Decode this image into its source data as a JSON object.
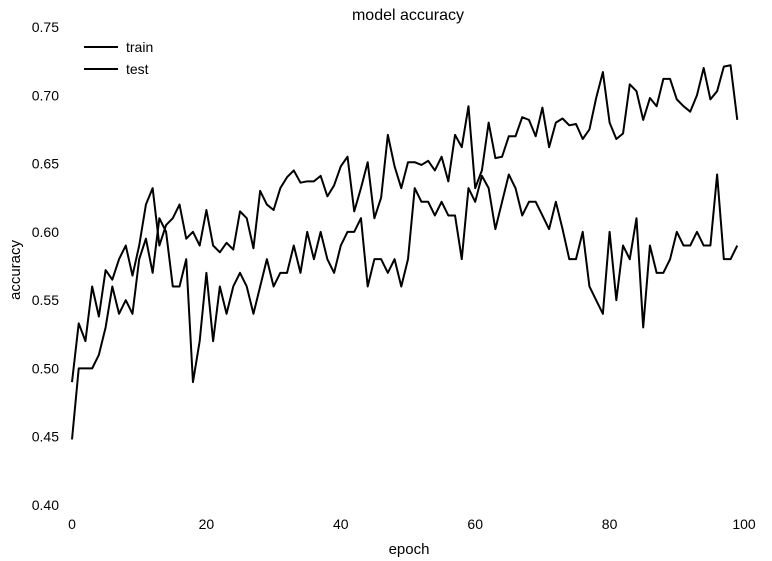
{
  "chart_data": {
    "type": "line",
    "title": "model accuracy",
    "xlabel": "epoch",
    "ylabel": "accuracy",
    "xlim": [
      0,
      100
    ],
    "ylim": [
      0.4,
      0.75
    ],
    "xticks": [
      "0",
      "20",
      "40",
      "60",
      "80",
      "100"
    ],
    "yticks": [
      "0.40",
      "0.45",
      "0.50",
      "0.55",
      "0.60",
      "0.65",
      "0.70",
      "0.75"
    ],
    "grid": false,
    "legend": "top-left",
    "line_color": "#000000",
    "series": [
      {
        "name": "train",
        "x": [
          0,
          1,
          2,
          3,
          4,
          5,
          6,
          7,
          8,
          9,
          10,
          11,
          12,
          13,
          14,
          15,
          16,
          17,
          18,
          19,
          20,
          21,
          22,
          23,
          24,
          25,
          26,
          27,
          28,
          29,
          30,
          31,
          32,
          33,
          34,
          35,
          36,
          37,
          38,
          39,
          40,
          41,
          42,
          43,
          44,
          45,
          46,
          47,
          48,
          49,
          50,
          51,
          52,
          53,
          54,
          55,
          56,
          57,
          58,
          59,
          60,
          61,
          62,
          63,
          64,
          65,
          66,
          67,
          68,
          69,
          70,
          71,
          72,
          73,
          74,
          75,
          76,
          77,
          78,
          79,
          80,
          81,
          82,
          83,
          84,
          85,
          86,
          87,
          88,
          89,
          90,
          91,
          92,
          93,
          94,
          95,
          96,
          97,
          98,
          99
        ],
        "values": [
          0.49,
          0.533,
          0.52,
          0.56,
          0.538,
          0.572,
          0.565,
          0.58,
          0.59,
          0.568,
          0.59,
          0.62,
          0.632,
          0.59,
          0.605,
          0.61,
          0.62,
          0.595,
          0.6,
          0.59,
          0.616,
          0.59,
          0.585,
          0.592,
          0.587,
          0.615,
          0.61,
          0.588,
          0.63,
          0.62,
          0.616,
          0.632,
          0.64,
          0.645,
          0.636,
          0.637,
          0.637,
          0.641,
          0.626,
          0.634,
          0.648,
          0.655,
          0.615,
          0.632,
          0.651,
          0.61,
          0.625,
          0.671,
          0.648,
          0.632,
          0.651,
          0.651,
          0.649,
          0.652,
          0.645,
          0.655,
          0.637,
          0.671,
          0.662,
          0.692,
          0.632,
          0.645,
          0.68,
          0.654,
          0.655,
          0.67,
          0.67,
          0.684,
          0.682,
          0.67,
          0.691,
          0.662,
          0.68,
          0.683,
          0.678,
          0.679,
          0.668,
          0.675,
          0.698,
          0.717,
          0.68,
          0.668,
          0.672,
          0.708,
          0.703,
          0.682,
          0.698,
          0.692,
          0.712,
          0.712,
          0.697,
          0.692,
          0.688,
          0.7,
          0.72,
          0.697,
          0.703,
          0.721,
          0.722,
          0.682
        ]
      },
      {
        "name": "test",
        "x": [
          0,
          1,
          2,
          3,
          4,
          5,
          6,
          7,
          8,
          9,
          10,
          11,
          12,
          13,
          14,
          15,
          16,
          17,
          18,
          19,
          20,
          21,
          22,
          23,
          24,
          25,
          26,
          27,
          28,
          29,
          30,
          31,
          32,
          33,
          34,
          35,
          36,
          37,
          38,
          39,
          40,
          41,
          42,
          43,
          44,
          45,
          46,
          47,
          48,
          49,
          50,
          51,
          52,
          53,
          54,
          55,
          56,
          57,
          58,
          59,
          60,
          61,
          62,
          63,
          64,
          65,
          66,
          67,
          68,
          69,
          70,
          71,
          72,
          73,
          74,
          75,
          76,
          77,
          78,
          79,
          80,
          81,
          82,
          83,
          84,
          85,
          86,
          87,
          88,
          89,
          90,
          91,
          92,
          93,
          94,
          95,
          96,
          97,
          98,
          99
        ],
        "values": [
          0.448,
          0.5,
          0.5,
          0.5,
          0.51,
          0.53,
          0.56,
          0.54,
          0.55,
          0.54,
          0.58,
          0.595,
          0.57,
          0.61,
          0.6,
          0.56,
          0.56,
          0.58,
          0.49,
          0.52,
          0.57,
          0.52,
          0.56,
          0.54,
          0.56,
          0.57,
          0.56,
          0.54,
          0.56,
          0.58,
          0.56,
          0.57,
          0.57,
          0.59,
          0.57,
          0.6,
          0.58,
          0.6,
          0.58,
          0.57,
          0.59,
          0.6,
          0.6,
          0.61,
          0.56,
          0.58,
          0.58,
          0.57,
          0.58,
          0.56,
          0.58,
          0.632,
          0.622,
          0.622,
          0.612,
          0.622,
          0.612,
          0.612,
          0.58,
          0.632,
          0.622,
          0.641,
          0.632,
          0.602,
          0.622,
          0.642,
          0.632,
          0.612,
          0.622,
          0.622,
          0.612,
          0.602,
          0.622,
          0.602,
          0.58,
          0.58,
          0.6,
          0.56,
          0.55,
          0.54,
          0.6,
          0.55,
          0.59,
          0.58,
          0.61,
          0.53,
          0.59,
          0.57,
          0.57,
          0.58,
          0.6,
          0.59,
          0.59,
          0.6,
          0.59,
          0.59,
          0.642,
          0.58,
          0.58,
          0.59
        ]
      }
    ]
  }
}
